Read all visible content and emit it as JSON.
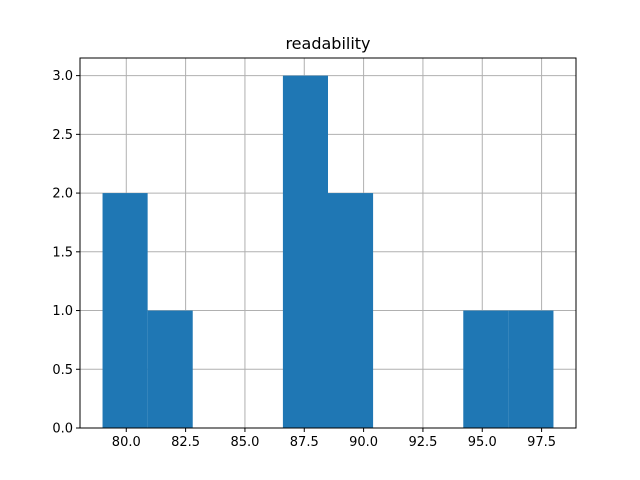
{
  "chart_data": {
    "type": "bar",
    "title": "readability",
    "xlabel": "",
    "ylabel": "",
    "bin_edges": [
      79.0,
      80.9,
      82.8,
      84.7,
      86.6,
      88.5,
      90.4,
      92.3,
      94.2,
      96.1,
      98.0
    ],
    "counts": [
      2,
      1,
      0,
      0,
      3,
      2,
      0,
      0,
      1,
      1
    ],
    "xlim": [
      78.05,
      98.95
    ],
    "ylim": [
      0,
      3.15
    ],
    "x_ticks": [
      80.0,
      82.5,
      85.0,
      87.5,
      90.0,
      92.5,
      95.0,
      97.5
    ],
    "x_tick_labels": [
      "80.0",
      "82.5",
      "85.0",
      "87.5",
      "90.0",
      "92.5",
      "95.0",
      "97.5"
    ],
    "y_ticks": [
      0.0,
      0.5,
      1.0,
      1.5,
      2.0,
      2.5,
      3.0
    ],
    "y_tick_labels": [
      "0.0",
      "0.5",
      "1.0",
      "1.5",
      "2.0",
      "2.5",
      "3.0"
    ],
    "grid": true,
    "bar_color": "#1f77b4",
    "grid_color": "#b0b0b0"
  }
}
